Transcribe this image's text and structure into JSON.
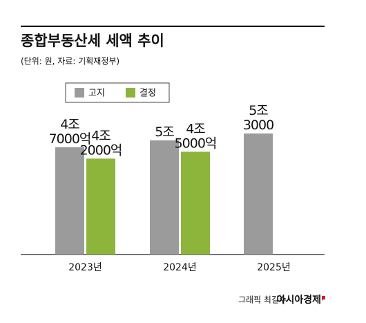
{
  "chart_data": {
    "type": "bar",
    "title": "종합부동산세 세액 추이",
    "subtitle": "(단위: 원, 자료: 기획재정부)",
    "categories": [
      "2023년",
      "2024년",
      "2025년"
    ],
    "series": [
      {
        "name": "고지",
        "color": "#9b9b9b",
        "values": [
          4700000000000,
          5000000000000,
          5300000000000
        ],
        "value_labels": [
          "4조\n7000억",
          "5조",
          "5조\n3000"
        ]
      },
      {
        "name": "결정",
        "color": "#8db43b",
        "values": [
          4200000000000,
          4500000000000,
          null
        ],
        "value_labels": [
          "4조\n2000억",
          "4조\n5000억",
          null
        ]
      }
    ],
    "legend": "top-left",
    "credit": "그래픽 최길수",
    "brand": "아시아경제"
  }
}
